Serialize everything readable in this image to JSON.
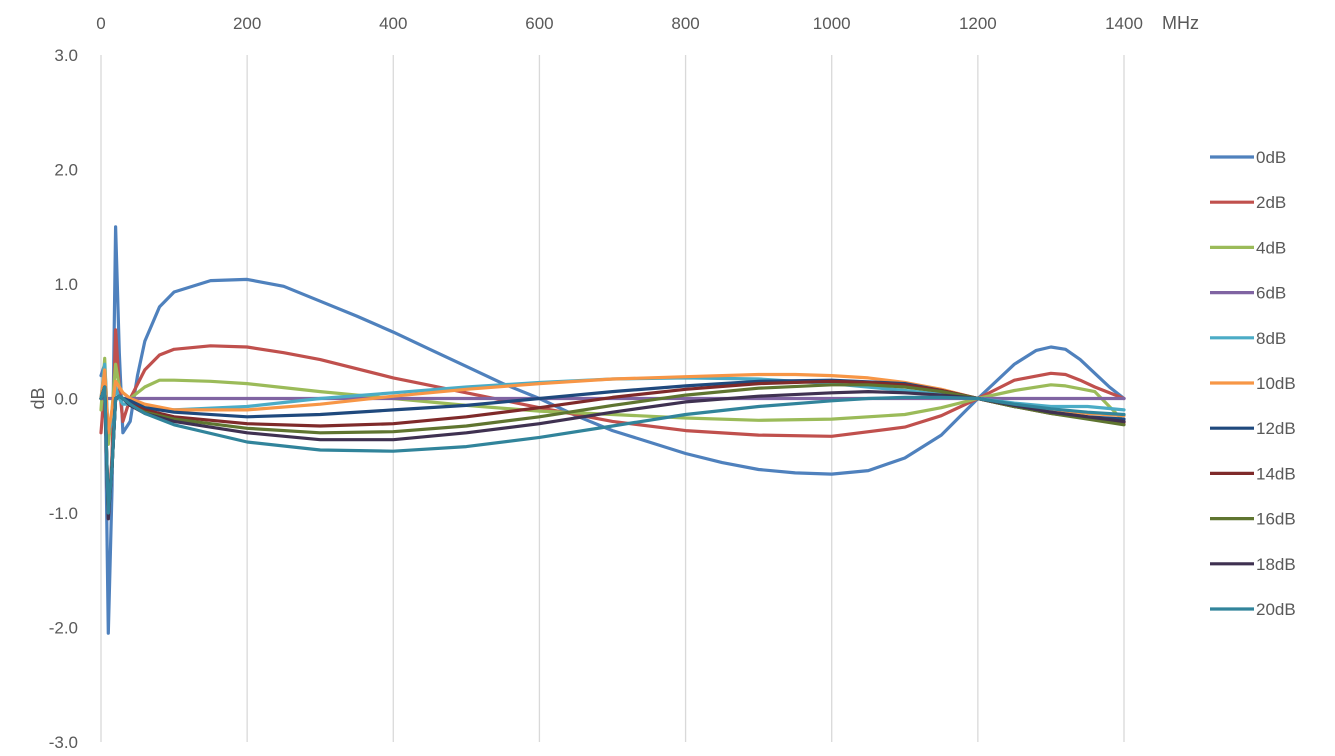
{
  "chart_data": {
    "type": "line",
    "title": "",
    "xlabel": "MHz",
    "ylabel": "dB",
    "xlim": [
      0,
      1400
    ],
    "ylim": [
      -3.0,
      3.0
    ],
    "x_ticks": [
      "0",
      "200",
      "400",
      "600",
      "800",
      "1000",
      "1200",
      "1400"
    ],
    "y_ticks": [
      "3.0",
      "2.0",
      "1.0",
      "0.0",
      "-1.0",
      "-2.0",
      "-3.0"
    ],
    "x_axis_position": "top",
    "grid": "vertical",
    "legend": "right",
    "series": [
      {
        "name": "0dB",
        "color": "#4F81BD",
        "x": [
          0,
          5,
          10,
          15,
          20,
          25,
          30,
          40,
          50,
          60,
          80,
          100,
          150,
          200,
          250,
          300,
          350,
          400,
          450,
          500,
          550,
          600,
          650,
          700,
          750,
          800,
          850,
          900,
          950,
          1000,
          1050,
          1100,
          1150,
          1200,
          1250,
          1280,
          1300,
          1320,
          1340,
          1360,
          1380,
          1400
        ],
        "y": [
          0.2,
          0.3,
          -2.05,
          -0.8,
          1.5,
          0.4,
          -0.3,
          -0.2,
          0.2,
          0.5,
          0.8,
          0.93,
          1.03,
          1.04,
          0.98,
          0.85,
          0.72,
          0.58,
          0.43,
          0.28,
          0.13,
          0.0,
          -0.15,
          -0.28,
          -0.38,
          -0.48,
          -0.56,
          -0.62,
          -0.65,
          -0.66,
          -0.63,
          -0.52,
          -0.32,
          0.0,
          0.3,
          0.42,
          0.45,
          0.43,
          0.34,
          0.22,
          0.1,
          0.0
        ]
      },
      {
        "name": "2dB",
        "color": "#C0504D",
        "x": [
          0,
          5,
          10,
          15,
          20,
          25,
          30,
          40,
          60,
          80,
          100,
          150,
          200,
          250,
          300,
          400,
          500,
          600,
          700,
          800,
          900,
          1000,
          1100,
          1150,
          1200,
          1250,
          1300,
          1320,
          1340,
          1360,
          1400
        ],
        "y": [
          -0.3,
          0.1,
          -1.05,
          -0.5,
          0.6,
          0.1,
          -0.2,
          0.0,
          0.25,
          0.38,
          0.43,
          0.46,
          0.45,
          0.4,
          0.34,
          0.18,
          0.05,
          -0.08,
          -0.2,
          -0.28,
          -0.32,
          -0.33,
          -0.25,
          -0.15,
          0.0,
          0.16,
          0.22,
          0.21,
          0.16,
          0.1,
          0.0
        ]
      },
      {
        "name": "4dB",
        "color": "#9BBB59",
        "x": [
          0,
          5,
          10,
          15,
          20,
          25,
          30,
          40,
          60,
          80,
          100,
          150,
          200,
          300,
          400,
          500,
          600,
          700,
          800,
          900,
          1000,
          1100,
          1150,
          1200,
          1250,
          1300,
          1320,
          1360,
          1400
        ],
        "y": [
          -0.1,
          0.35,
          -0.4,
          -0.1,
          0.3,
          0.1,
          0.05,
          0.0,
          0.1,
          0.16,
          0.16,
          0.15,
          0.13,
          0.06,
          0.0,
          -0.06,
          -0.11,
          -0.14,
          -0.17,
          -0.19,
          -0.18,
          -0.14,
          -0.08,
          0.0,
          0.07,
          0.12,
          0.11,
          0.06,
          -0.2
        ]
      },
      {
        "name": "6dB",
        "color": "#8064A2",
        "x": [
          0,
          1400
        ],
        "y": [
          0.0,
          0.0
        ]
      },
      {
        "name": "8dB",
        "color": "#4BACC6",
        "x": [
          0,
          5,
          10,
          15,
          20,
          25,
          30,
          40,
          60,
          100,
          200,
          300,
          400,
          500,
          600,
          700,
          800,
          900,
          1000,
          1100,
          1200,
          1250,
          1300,
          1350,
          1400
        ],
        "y": [
          0.0,
          0.3,
          -0.3,
          -0.2,
          0.1,
          0.0,
          -0.05,
          -0.05,
          -0.08,
          -0.1,
          -0.07,
          0.0,
          0.05,
          0.1,
          0.14,
          0.17,
          0.18,
          0.17,
          0.13,
          0.07,
          0.0,
          -0.04,
          -0.07,
          -0.07,
          -0.1
        ]
      },
      {
        "name": "10dB",
        "color": "#F79646",
        "x": [
          0,
          5,
          10,
          15,
          20,
          25,
          30,
          40,
          60,
          100,
          200,
          300,
          400,
          500,
          600,
          700,
          800,
          900,
          950,
          1000,
          1050,
          1100,
          1150,
          1200,
          1250,
          1300,
          1350,
          1400
        ],
        "y": [
          0.0,
          0.25,
          -0.3,
          -0.1,
          0.15,
          0.1,
          0.05,
          0.0,
          -0.05,
          -0.1,
          -0.1,
          -0.05,
          0.02,
          0.08,
          0.13,
          0.17,
          0.19,
          0.21,
          0.21,
          0.2,
          0.18,
          0.14,
          0.08,
          0.0,
          -0.06,
          -0.1,
          -0.13,
          -0.15
        ]
      },
      {
        "name": "12dB",
        "color": "#1F497D",
        "x": [
          0,
          5,
          10,
          15,
          20,
          25,
          30,
          40,
          60,
          100,
          200,
          300,
          400,
          500,
          600,
          700,
          800,
          900,
          1000,
          1100,
          1150,
          1200,
          1250,
          1300,
          1350,
          1400
        ],
        "y": [
          0.0,
          0.1,
          -1.0,
          -0.6,
          0.0,
          0.02,
          0.0,
          -0.02,
          -0.08,
          -0.12,
          -0.16,
          -0.14,
          -0.1,
          -0.06,
          0.0,
          0.06,
          0.11,
          0.15,
          0.16,
          0.13,
          0.07,
          0.0,
          -0.07,
          -0.12,
          -0.16,
          -0.18
        ]
      },
      {
        "name": "14dB",
        "color": "#7F2A2A",
        "x": [
          0,
          5,
          10,
          15,
          20,
          25,
          30,
          40,
          60,
          100,
          200,
          300,
          400,
          500,
          600,
          700,
          800,
          900,
          1000,
          1050,
          1100,
          1150,
          1200,
          1250,
          1300,
          1350,
          1400
        ],
        "y": [
          0.0,
          0.1,
          -1.0,
          -0.6,
          0.0,
          0.02,
          0.0,
          -0.05,
          -0.1,
          -0.16,
          -0.22,
          -0.24,
          -0.22,
          -0.16,
          -0.08,
          0.01,
          0.08,
          0.13,
          0.15,
          0.14,
          0.12,
          0.07,
          0.0,
          -0.07,
          -0.13,
          -0.17,
          -0.21
        ]
      },
      {
        "name": "16dB",
        "color": "#5F7530",
        "x": [
          0,
          5,
          10,
          15,
          20,
          25,
          30,
          40,
          60,
          100,
          200,
          300,
          400,
          500,
          600,
          700,
          800,
          900,
          1000,
          1050,
          1100,
          1150,
          1200,
          1250,
          1300,
          1350,
          1400
        ],
        "y": [
          0.0,
          0.1,
          -1.0,
          -0.6,
          0.0,
          0.02,
          0.0,
          -0.06,
          -0.12,
          -0.18,
          -0.26,
          -0.3,
          -0.29,
          -0.24,
          -0.16,
          -0.06,
          0.03,
          0.09,
          0.12,
          0.12,
          0.1,
          0.06,
          0.0,
          -0.07,
          -0.13,
          -0.18,
          -0.23
        ]
      },
      {
        "name": "18dB",
        "color": "#3F3151",
        "x": [
          0,
          5,
          10,
          15,
          20,
          25,
          30,
          40,
          60,
          100,
          200,
          300,
          400,
          500,
          600,
          700,
          800,
          900,
          1000,
          1050,
          1100,
          1150,
          1200,
          1250,
          1300,
          1350,
          1400
        ],
        "y": [
          0.0,
          0.1,
          -1.05,
          -0.6,
          0.0,
          0.02,
          0.0,
          -0.06,
          -0.13,
          -0.2,
          -0.3,
          -0.36,
          -0.36,
          -0.3,
          -0.22,
          -0.12,
          -0.03,
          0.02,
          0.05,
          0.06,
          0.05,
          0.03,
          0.0,
          -0.06,
          -0.12,
          -0.16,
          -0.2
        ]
      },
      {
        "name": "20dB",
        "color": "#31849B",
        "x": [
          0,
          5,
          10,
          15,
          20,
          25,
          30,
          40,
          60,
          100,
          200,
          300,
          400,
          500,
          600,
          700,
          800,
          900,
          1000,
          1050,
          1100,
          1150,
          1200,
          1250,
          1300,
          1350,
          1400
        ],
        "y": [
          0.0,
          0.1,
          -1.0,
          -0.6,
          0.0,
          0.02,
          0.0,
          -0.05,
          -0.13,
          -0.23,
          -0.38,
          -0.45,
          -0.46,
          -0.42,
          -0.34,
          -0.24,
          -0.14,
          -0.07,
          -0.02,
          0.0,
          0.01,
          0.01,
          0.0,
          -0.05,
          -0.09,
          -0.12,
          -0.14
        ]
      }
    ]
  }
}
